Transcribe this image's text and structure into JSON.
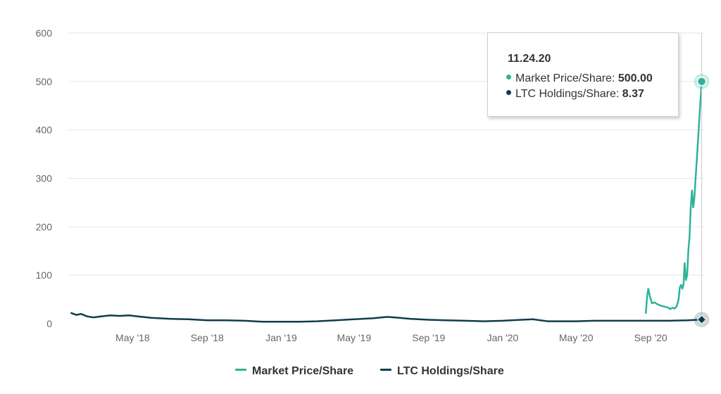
{
  "colors": {
    "market": "#2db39a",
    "ltc": "#0f3d4e",
    "grid": "#e6e6e6",
    "axis_text": "#666666"
  },
  "tooltip": {
    "date": "11.24.20",
    "series": [
      {
        "label": "Market Price/Share:",
        "value": "500.00"
      },
      {
        "label": "LTC Holdings/Share:",
        "value": "8.37"
      }
    ]
  },
  "legend": [
    {
      "label": "Market Price/Share"
    },
    {
      "label": "LTC Holdings/Share"
    }
  ],
  "chart_data": {
    "type": "line",
    "title": "",
    "xlabel": "",
    "ylabel": "",
    "ylim": [
      0,
      600
    ],
    "xlim": [
      "2018-01-15",
      "2020-11-28"
    ],
    "y_ticks": [
      0,
      100,
      200,
      300,
      400,
      500,
      600
    ],
    "x_ticks": [
      {
        "date": "2018-05-01",
        "label": "May '18"
      },
      {
        "date": "2018-09-01",
        "label": "Sep '18"
      },
      {
        "date": "2019-01-01",
        "label": "Jan '19"
      },
      {
        "date": "2019-05-01",
        "label": "May '19"
      },
      {
        "date": "2019-09-01",
        "label": "Sep '19"
      },
      {
        "date": "2020-01-01",
        "label": "Jan '20"
      },
      {
        "date": "2020-05-01",
        "label": "May '20"
      },
      {
        "date": "2020-09-01",
        "label": "Sep '20"
      }
    ],
    "grid": true,
    "legend_position": "bottom-center",
    "series": [
      {
        "name": "Market Price/Share",
        "color": "#2db39a",
        "points": [
          [
            "2020-08-24",
            22
          ],
          [
            "2020-08-26",
            55
          ],
          [
            "2020-08-28",
            72
          ],
          [
            "2020-08-31",
            55
          ],
          [
            "2020-09-03",
            42
          ],
          [
            "2020-09-07",
            44
          ],
          [
            "2020-09-12",
            40
          ],
          [
            "2020-09-18",
            37
          ],
          [
            "2020-09-24",
            35
          ],
          [
            "2020-09-30",
            33
          ],
          [
            "2020-10-03",
            30
          ],
          [
            "2020-10-07",
            33
          ],
          [
            "2020-10-10",
            31
          ],
          [
            "2020-10-14",
            36
          ],
          [
            "2020-10-17",
            50
          ],
          [
            "2020-10-19",
            75
          ],
          [
            "2020-10-21",
            80
          ],
          [
            "2020-10-23",
            72
          ],
          [
            "2020-10-25",
            80
          ],
          [
            "2020-10-27",
            125
          ],
          [
            "2020-10-29",
            90
          ],
          [
            "2020-10-31",
            100
          ],
          [
            "2020-11-02",
            150
          ],
          [
            "2020-11-04",
            180
          ],
          [
            "2020-11-06",
            240
          ],
          [
            "2020-11-08",
            275
          ],
          [
            "2020-11-10",
            240
          ],
          [
            "2020-11-12",
            260
          ],
          [
            "2020-11-14",
            300
          ],
          [
            "2020-11-16",
            340
          ],
          [
            "2020-11-18",
            380
          ],
          [
            "2020-11-20",
            420
          ],
          [
            "2020-11-22",
            460
          ],
          [
            "2020-11-24",
            500
          ]
        ]
      },
      {
        "name": "LTC Holdings/Share",
        "color": "#0f3d4e",
        "points": [
          [
            "2018-01-20",
            22
          ],
          [
            "2018-01-28",
            18
          ],
          [
            "2018-02-05",
            20
          ],
          [
            "2018-02-15",
            15
          ],
          [
            "2018-02-25",
            13
          ],
          [
            "2018-03-10",
            15
          ],
          [
            "2018-03-25",
            17
          ],
          [
            "2018-04-10",
            16
          ],
          [
            "2018-04-25",
            17
          ],
          [
            "2018-05-10",
            15
          ],
          [
            "2018-06-01",
            12
          ],
          [
            "2018-07-01",
            10
          ],
          [
            "2018-08-01",
            9
          ],
          [
            "2018-09-01",
            7
          ],
          [
            "2018-10-01",
            7
          ],
          [
            "2018-11-01",
            6
          ],
          [
            "2018-12-01",
            4
          ],
          [
            "2019-01-01",
            4
          ],
          [
            "2019-02-01",
            4
          ],
          [
            "2019-03-01",
            5
          ],
          [
            "2019-04-01",
            7
          ],
          [
            "2019-05-01",
            9
          ],
          [
            "2019-06-01",
            11
          ],
          [
            "2019-06-25",
            14
          ],
          [
            "2019-07-15",
            12
          ],
          [
            "2019-08-01",
            10
          ],
          [
            "2019-09-01",
            8
          ],
          [
            "2019-10-01",
            7
          ],
          [
            "2019-11-01",
            6
          ],
          [
            "2019-12-01",
            5
          ],
          [
            "2020-01-01",
            6
          ],
          [
            "2020-02-01",
            8
          ],
          [
            "2020-02-20",
            9
          ],
          [
            "2020-03-15",
            5
          ],
          [
            "2020-04-01",
            5
          ],
          [
            "2020-05-01",
            5
          ],
          [
            "2020-06-01",
            6
          ],
          [
            "2020-07-01",
            6
          ],
          [
            "2020-08-01",
            6
          ],
          [
            "2020-09-01",
            6
          ],
          [
            "2020-10-01",
            6
          ],
          [
            "2020-11-01",
            7
          ],
          [
            "2020-11-24",
            8.37
          ]
        ]
      }
    ],
    "highlight": {
      "date": "2020-11-24",
      "market": 500.0,
      "ltc": 8.37
    }
  }
}
